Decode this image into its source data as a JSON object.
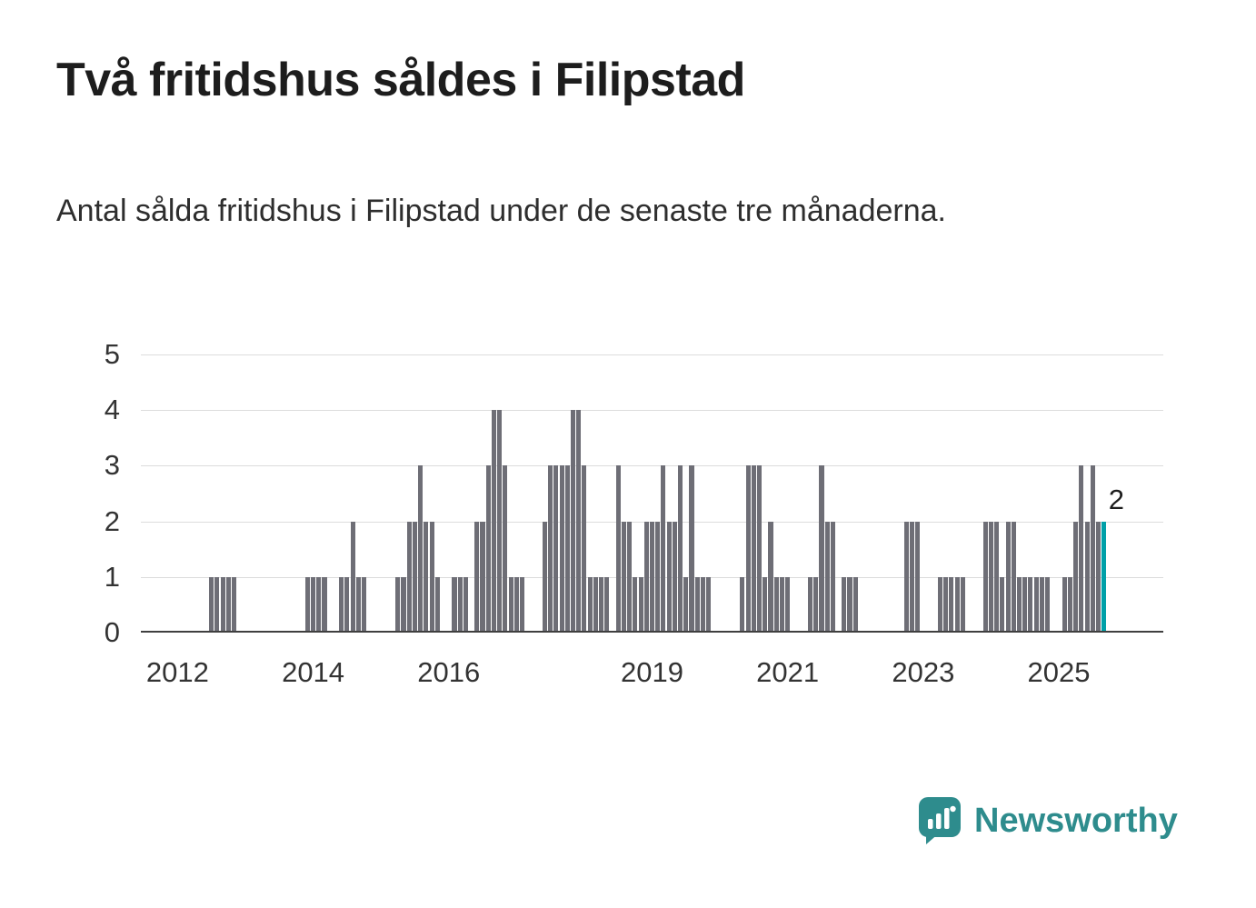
{
  "header": {
    "title": "Två fritidshus såldes i Filipstad",
    "subtitle": "Antal sålda fritidshus i Filipstad under de senaste tre månaderna."
  },
  "chart_data": {
    "type": "bar",
    "title": "Två fritidshus såldes i Filipstad",
    "subtitle": "Antal sålda fritidshus i Filipstad under de senaste tre månaderna.",
    "ylabel": "",
    "xlabel": "",
    "ylim": [
      0,
      5
    ],
    "yticks": [
      0,
      1,
      2,
      3,
      4,
      5
    ],
    "xticks": [
      2012,
      2014,
      2016,
      2019,
      2021,
      2023,
      2025
    ],
    "grid": true,
    "bar_color": "#6e6e76",
    "highlight_color": "#00a0a8",
    "last_value_label": "2",
    "frequency": "monthly",
    "series": [
      {
        "year": 2011,
        "first_month": 7,
        "values": [
          0,
          0,
          0,
          0,
          0,
          0
        ]
      },
      {
        "year": 2012,
        "first_month": 1,
        "values": [
          0,
          0,
          0,
          0,
          0,
          0,
          1,
          1,
          1,
          1,
          1,
          0
        ]
      },
      {
        "year": 2013,
        "first_month": 1,
        "values": [
          0,
          0,
          0,
          0,
          0,
          0,
          0,
          0,
          0,
          0,
          0,
          1
        ]
      },
      {
        "year": 2014,
        "first_month": 1,
        "values": [
          1,
          1,
          1,
          0,
          0,
          1,
          1,
          2,
          1,
          1,
          0,
          0
        ]
      },
      {
        "year": 2015,
        "first_month": 1,
        "values": [
          0,
          0,
          0,
          1,
          1,
          2,
          2,
          3,
          2,
          2,
          1,
          0
        ]
      },
      {
        "year": 2016,
        "first_month": 1,
        "values": [
          0,
          1,
          1,
          1,
          0,
          2,
          2,
          3,
          4,
          4,
          3,
          1
        ]
      },
      {
        "year": 2017,
        "first_month": 1,
        "values": [
          1,
          1,
          0,
          0,
          0,
          2,
          3,
          3,
          3,
          3,
          4,
          4
        ]
      },
      {
        "year": 2018,
        "first_month": 1,
        "values": [
          3,
          1,
          1,
          1,
          1,
          0,
          3,
          2,
          2,
          1,
          1,
          2
        ]
      },
      {
        "year": 2019,
        "first_month": 1,
        "values": [
          2,
          2,
          3,
          2,
          2,
          3,
          1,
          3,
          1,
          1,
          1,
          0
        ]
      },
      {
        "year": 2020,
        "first_month": 1,
        "values": [
          0,
          0,
          0,
          0,
          1,
          3,
          3,
          3,
          1,
          2,
          1,
          1
        ]
      },
      {
        "year": 2021,
        "first_month": 1,
        "values": [
          1,
          0,
          0,
          0,
          1,
          1,
          3,
          2,
          2,
          0,
          1,
          1
        ]
      },
      {
        "year": 2022,
        "first_month": 1,
        "values": [
          1,
          0,
          0,
          0,
          0,
          0,
          0,
          0,
          0,
          2,
          2,
          2
        ]
      },
      {
        "year": 2023,
        "first_month": 1,
        "values": [
          0,
          0,
          0,
          1,
          1,
          1,
          1,
          1,
          0,
          0,
          0,
          2
        ]
      },
      {
        "year": 2024,
        "first_month": 1,
        "values": [
          2,
          2,
          1,
          2,
          2,
          1,
          1,
          1,
          1,
          1,
          1,
          0
        ]
      },
      {
        "year": 2025,
        "first_month": 1,
        "values": [
          0,
          1,
          1,
          2,
          3,
          2,
          3,
          2,
          2
        ]
      }
    ]
  },
  "footer": {
    "logo_text": "Newsworthy",
    "logo_color": "#2e8c8d",
    "logo_icon": "bar-chart-speech-bubble"
  }
}
